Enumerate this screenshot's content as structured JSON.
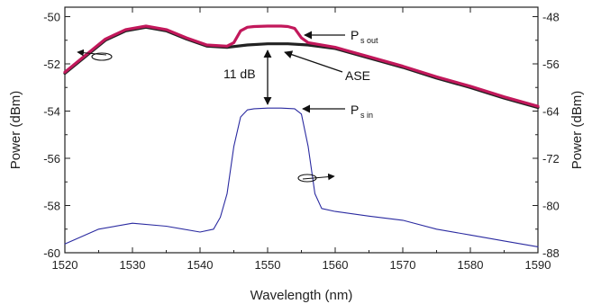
{
  "chart_data": {
    "type": "line",
    "title": "",
    "xlabel": "Wavelength (nm)",
    "ylabel_left": "Power (dBm)",
    "ylabel_right": "Power (dBm)",
    "xlim": [
      1520,
      1590
    ],
    "ylim_left": [
      -60,
      -49.6
    ],
    "ylim_right": [
      -88,
      -46.4
    ],
    "x_ticks": [
      1520,
      1530,
      1540,
      1550,
      1560,
      1570,
      1580,
      1590
    ],
    "y_ticks_left": [
      -60,
      -58,
      -56,
      -54,
      -52,
      -50
    ],
    "y_ticks_right": [
      -88,
      -80,
      -72,
      -64,
      -56,
      -48
    ],
    "grid": false,
    "series": [
      {
        "name": "ASE",
        "axis": "left",
        "color": "#222222",
        "x": [
          1520,
          1523,
          1526,
          1529,
          1532,
          1535,
          1538,
          1541,
          1544,
          1547,
          1550,
          1553,
          1556,
          1560,
          1565,
          1570,
          1575,
          1580,
          1585,
          1590
        ],
        "y": [
          -52.4,
          -51.7,
          -51.0,
          -50.6,
          -50.45,
          -50.6,
          -50.95,
          -51.25,
          -51.3,
          -51.2,
          -51.15,
          -51.15,
          -51.2,
          -51.35,
          -51.75,
          -52.15,
          -52.6,
          -53.0,
          -53.45,
          -53.85
        ]
      },
      {
        "name": "Ps out",
        "axis": "left",
        "color": "#c2185b",
        "x": [
          1520,
          1523,
          1526,
          1529,
          1532,
          1535,
          1538,
          1541,
          1544,
          1545,
          1546,
          1547,
          1548,
          1550,
          1552,
          1553,
          1554,
          1555,
          1556,
          1560,
          1565,
          1570,
          1575,
          1580,
          1585,
          1590
        ],
        "y": [
          -52.35,
          -51.65,
          -50.95,
          -50.55,
          -50.4,
          -50.55,
          -50.9,
          -51.2,
          -51.25,
          -51.1,
          -50.6,
          -50.45,
          -50.42,
          -50.4,
          -50.4,
          -50.42,
          -50.5,
          -50.9,
          -51.1,
          -51.3,
          -51.7,
          -52.1,
          -52.55,
          -52.95,
          -53.4,
          -53.8
        ]
      },
      {
        "name": "Ps in",
        "axis": "right",
        "color": "#2a2aa0",
        "x": [
          1520,
          1525,
          1530,
          1535,
          1540,
          1542,
          1543,
          1544,
          1545,
          1546,
          1547,
          1548,
          1550,
          1552,
          1554,
          1555,
          1556,
          1557,
          1558,
          1560,
          1565,
          1570,
          1575,
          1580,
          1585,
          1590
        ],
        "y": [
          -86.5,
          -84,
          -83,
          -83.5,
          -84.5,
          -84,
          -82,
          -78,
          -70,
          -65,
          -63.8,
          -63.6,
          -63.5,
          -63.5,
          -63.6,
          -64.5,
          -70,
          -78,
          -80.5,
          -81,
          -81.8,
          -82.5,
          -84,
          -85,
          -86,
          -87
        ]
      }
    ],
    "annotations": {
      "ps_out": {
        "main": "P",
        "sub": "s out"
      },
      "ase": "ASE",
      "gain": "11 dB",
      "ps_in": {
        "main": "P",
        "sub": "s in"
      }
    }
  }
}
